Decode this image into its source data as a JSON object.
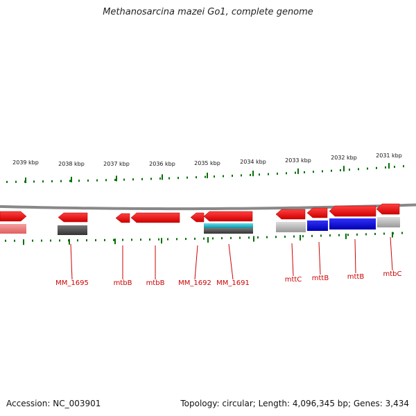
{
  "title": "Methanosarcina mazei Go1, complete genome",
  "footer": {
    "accession": "Accession: NC_003901",
    "summary": "Topology: circular; Length: 4,096,345 bp; Genes: 3,434"
  },
  "colors": {
    "gene_forward": "#ff0000",
    "gene_reverse_light": "#f08080",
    "dark_gray": "#555555",
    "light_gray": "#bbbbbb",
    "cyan": "#20c0d0",
    "blue": "#0000ee",
    "tick_green": "#007000",
    "label_red": "#cc0000",
    "backbone": "#888888"
  },
  "scale_labels": [
    "2039 kbp",
    "2038 kbp",
    "2037 kbp",
    "2036 kbp",
    "2035 kbp",
    "2034 kbp",
    "2033 kbp",
    "2032 kbp",
    "2031 kbp"
  ],
  "gene_labels": [
    "MM_1695",
    "mtbB",
    "mtbB",
    "MM_1692",
    "MM_1691",
    "mttC",
    "mttB",
    "mttB",
    "mtbC"
  ]
}
